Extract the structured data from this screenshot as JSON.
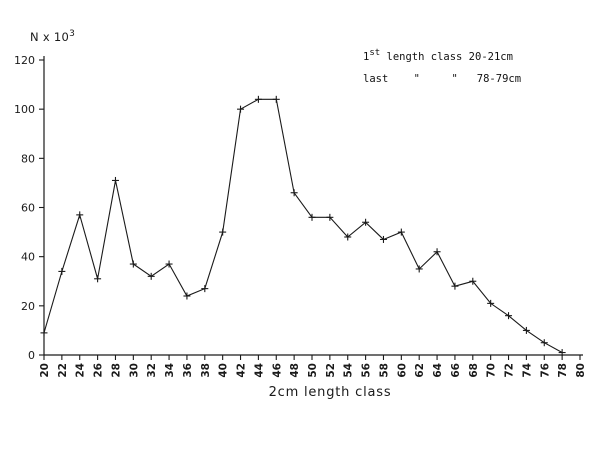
{
  "chart_data": {
    "type": "line",
    "title": "",
    "ylabel": "N x 10",
    "ylabel_exponent": "3",
    "xlabel": "2cm length class",
    "ylim": [
      0,
      120
    ],
    "xlim": [
      20,
      80
    ],
    "yticks": [
      0,
      20,
      40,
      60,
      80,
      100,
      120
    ],
    "xticks": [
      20,
      22,
      24,
      26,
      28,
      30,
      32,
      34,
      36,
      38,
      40,
      42,
      44,
      46,
      48,
      50,
      52,
      54,
      56,
      58,
      60,
      62,
      64,
      66,
      68,
      70,
      72,
      74,
      76,
      78,
      80
    ],
    "grid": false,
    "series": [
      {
        "x": [
          20,
          22,
          24,
          26,
          28,
          30,
          32,
          34,
          36,
          38,
          40,
          42,
          44,
          46,
          48,
          50,
          52,
          54,
          56,
          58,
          60,
          62,
          64,
          66,
          68,
          70,
          72,
          74,
          76,
          78
        ],
        "y": [
          9,
          34,
          57,
          31,
          71,
          37,
          32,
          37,
          24,
          27,
          50,
          100,
          104,
          104,
          66,
          56,
          56,
          48,
          54,
          47,
          50,
          35,
          42,
          28,
          30,
          21,
          16,
          10,
          5,
          1
        ]
      }
    ],
    "annotations": [
      {
        "prefix": "1",
        "sup": "st",
        "text": " length class 20-21cm"
      },
      {
        "text": "last    \"     \"   78-79cm"
      }
    ]
  },
  "colors": {
    "ink": "#1a1a1a",
    "background": "#ffffff"
  }
}
